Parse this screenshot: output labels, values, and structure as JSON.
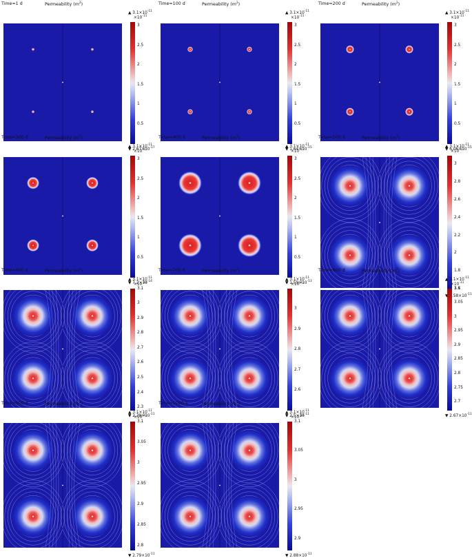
{
  "chart_data": [
    {
      "type": "heatmap",
      "time": "Time=1 d",
      "title_html": "Permeability (m<sup>2</sup>)",
      "max_html": "▲ 3.1×10<sup>-11</sup>",
      "mult_html": "×10<sup>-11</sup>",
      "min_html": "▼ 2.67×10<sup>-17</sup>",
      "ticks": [
        "3",
        "2.5",
        "2",
        "1.5",
        "1",
        "0.5"
      ],
      "tick_values": [
        3,
        2.5,
        2,
        1.5,
        1,
        0.5
      ],
      "clim": [
        0,
        3.1
      ],
      "blob_radius": 2,
      "contours": false
    },
    {
      "type": "heatmap",
      "time": "Time=100 d",
      "title_html": "Permeability (m<sup>2</sup>)",
      "max_html": "▲ 3.1×10<sup>-11</sup>",
      "mult_html": "×10<sup>-11</sup>",
      "min_html": "▼ 1.64×10<sup>-15</sup>",
      "ticks": [
        "3",
        "2.5",
        "2",
        "1.5",
        "1",
        "0.5"
      ],
      "tick_values": [
        3,
        2.5,
        2,
        1.5,
        1,
        0.5
      ],
      "clim": [
        0,
        3.1
      ],
      "blob_radius": 4,
      "contours": false
    },
    {
      "type": "heatmap",
      "time": "Time=200 d",
      "title_html": "Permeability (m<sup>2</sup>)",
      "max_html": "▲ 3.1×10<sup>-11</sup>",
      "mult_html": "×10<sup>-11</sup>",
      "min_html": "▼ 6.06×10<sup>-15</sup>",
      "ticks": [
        "3",
        "2.5",
        "2",
        "1.5",
        "1",
        "0.5"
      ],
      "tick_values": [
        3,
        2.5,
        2,
        1.5,
        1,
        0.5
      ],
      "clim": [
        0,
        3.1
      ],
      "blob_radius": 6,
      "contours": false
    },
    {
      "type": "heatmap",
      "time": "Time=300 d",
      "title_html": "Permeability (m<sup>2</sup>)",
      "max_html": "▲ 3.1×10<sup>-11</sup>",
      "mult_html": "×10<sup>-11</sup>",
      "min_html": "▼ 7.2×10<sup>-14</sup>",
      "ticks": [
        "3",
        "2.5",
        "2",
        "1.5",
        "1",
        "0.5"
      ],
      "tick_values": [
        3,
        2.5,
        2,
        1.5,
        1,
        0.5
      ],
      "clim": [
        0,
        3.1
      ],
      "blob_radius": 9,
      "contours": false
    },
    {
      "type": "heatmap",
      "time": "Time=400 d",
      "title_html": "Permeability (m<sup>2</sup>)",
      "max_html": "▲ 3.1×10<sup>-11</sup>",
      "mult_html": "×10<sup>-11</sup>",
      "min_html": "▼ 1.59×10<sup>-13</sup>",
      "ticks": [
        "3",
        "2.5",
        "2",
        "1.5",
        "1",
        "0.5"
      ],
      "tick_values": [
        3,
        2.5,
        2,
        1.5,
        1,
        0.5
      ],
      "clim": [
        0,
        3.1
      ],
      "blob_radius": 17,
      "contours": false
    },
    {
      "type": "heatmap",
      "time": "Time=500 d",
      "title_html": "Permeability (m<sup>2</sup>)",
      "max_html": "▲ 3.1×10<sup>-11</sup>",
      "mult_html": "×10<sup>-11</sup>",
      "min_html": "▼ 1.58×10<sup>-11</sup>",
      "ticks": [
        "3",
        "2.8",
        "2.6",
        "2.4",
        "2.2",
        "2",
        "1.8",
        "1.6"
      ],
      "tick_values": [
        3,
        2.8,
        2.6,
        2.4,
        2.2,
        2,
        1.8,
        1.6
      ],
      "clim": [
        1.58,
        3.1
      ],
      "blob_radius": 30,
      "contours": true
    },
    {
      "type": "heatmap",
      "time": "Time=600 d",
      "title_html": "Permeability (m<sup>2</sup>)",
      "max_html": "▲ 3.1×10<sup>-11</sup>",
      "mult_html": "×10<sup>-11</sup>",
      "min_html": "▼ 2.28×10<sup>-11</sup>",
      "ticks": [
        "3.1",
        "3",
        "2.9",
        "2.8",
        "2.7",
        "2.6",
        "2.5",
        "2.4",
        "2.3"
      ],
      "tick_values": [
        3.1,
        3,
        2.9,
        2.8,
        2.7,
        2.6,
        2.5,
        2.4,
        2.3
      ],
      "clim": [
        2.28,
        3.1
      ],
      "blob_radius": 30,
      "contours": true
    },
    {
      "type": "heatmap",
      "time": "Time=700 d",
      "title_html": "Permeability (m<sup>2</sup>)",
      "max_html": "▲ 3.1×10<sup>-11</sup>",
      "mult_html": "×10<sup>-11</sup>",
      "min_html": "▼ 2.5×10<sup>-11</sup>",
      "ticks": [
        "3",
        "2.9",
        "2.8",
        "2.7",
        "2.6"
      ],
      "tick_values": [
        3,
        2.9,
        2.8,
        2.7,
        2.6
      ],
      "clim": [
        2.5,
        3.1
      ],
      "blob_radius": 30,
      "contours": true
    },
    {
      "type": "heatmap",
      "time": "Time=800 d",
      "title_html": "Permeability (m<sup>2</sup>)",
      "max_html": "▲ 3.1×10<sup>-11</sup>",
      "mult_html": "×10<sup>-11</sup>",
      "min_html": "▼ 2.67×10<sup>-11</sup>",
      "ticks": [
        "3.1",
        "3.05",
        "3",
        "2.95",
        "2.9",
        "2.85",
        "2.8",
        "2.75",
        "2.7"
      ],
      "tick_values": [
        3.1,
        3.05,
        3,
        2.95,
        2.9,
        2.85,
        2.8,
        2.75,
        2.7
      ],
      "clim": [
        2.67,
        3.1
      ],
      "blob_radius": 30,
      "contours": true
    },
    {
      "type": "heatmap",
      "time": "Time=900 d",
      "title_html": "Permeability (m<sup>2</sup>)",
      "max_html": "▲ 3.1×10<sup>-11</sup>",
      "mult_html": "×10<sup>-11</sup>",
      "min_html": "▼ 2.79×10<sup>-11</sup>",
      "ticks": [
        "3.1",
        "3.05",
        "3",
        "2.95",
        "2.9",
        "2.85",
        "2.8"
      ],
      "tick_values": [
        3.1,
        3.05,
        3,
        2.95,
        2.9,
        2.85,
        2.8
      ],
      "clim": [
        2.79,
        3.1
      ],
      "blob_radius": 30,
      "contours": true
    },
    {
      "type": "heatmap",
      "time": "Time=1000 d",
      "title_html": "Permeability (m<sup>2</sup>)",
      "max_html": "▲ 3.1×10<sup>-11</sup>",
      "mult_html": "×10<sup>-11</sup>",
      "min_html": "▼ 2.88×10<sup>-11</sup>",
      "ticks": [
        "3.1",
        "3.05",
        "3",
        "2.95",
        "2.9"
      ],
      "tick_values": [
        3.1,
        3.05,
        3,
        2.95,
        2.9
      ],
      "clim": [
        2.88,
        3.1
      ],
      "blob_radius": 30,
      "contours": true
    }
  ]
}
